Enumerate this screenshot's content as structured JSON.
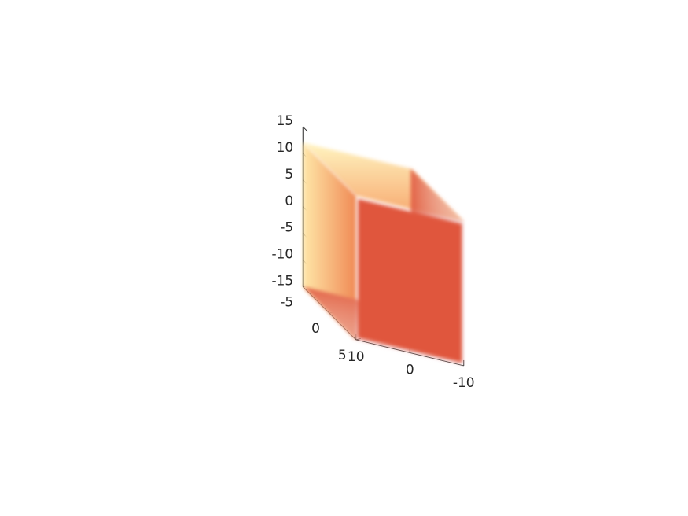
{
  "chart_data": {
    "type": "volume",
    "title": "",
    "xlabel": "",
    "ylabel": "",
    "zlabel": "",
    "xlim": [
      -10,
      10
    ],
    "ylim": [
      -5,
      5
    ],
    "zlim": [
      -15,
      15
    ],
    "x_ticks": [
      {
        "value": -10,
        "label": "-10"
      },
      {
        "value": 0,
        "label": "0"
      },
      {
        "value": 10,
        "label": "10"
      }
    ],
    "y_ticks": [
      {
        "value": -5,
        "label": "-5"
      },
      {
        "value": 0,
        "label": "0"
      },
      {
        "value": 5,
        "label": "5"
      }
    ],
    "z_ticks": [
      {
        "value": -15,
        "label": "-15"
      },
      {
        "value": -10,
        "label": "-10"
      },
      {
        "value": -5,
        "label": "-5"
      },
      {
        "value": 0,
        "label": "0"
      },
      {
        "value": 5,
        "label": "5"
      },
      {
        "value": 10,
        "label": "10"
      },
      {
        "value": 15,
        "label": "15"
      }
    ],
    "volume": {
      "x_range": [
        -10,
        10
      ],
      "y_range": [
        -5,
        5
      ],
      "z_range": [
        -15,
        12
      ],
      "face_color": "#E0573C",
      "edge_color_top": "#FFF1B0",
      "edge_color_side": "#F9C27A",
      "edge_color_bottom": "#E8C8D4",
      "transparent_edges": true
    },
    "grid": false,
    "legend": "none"
  }
}
